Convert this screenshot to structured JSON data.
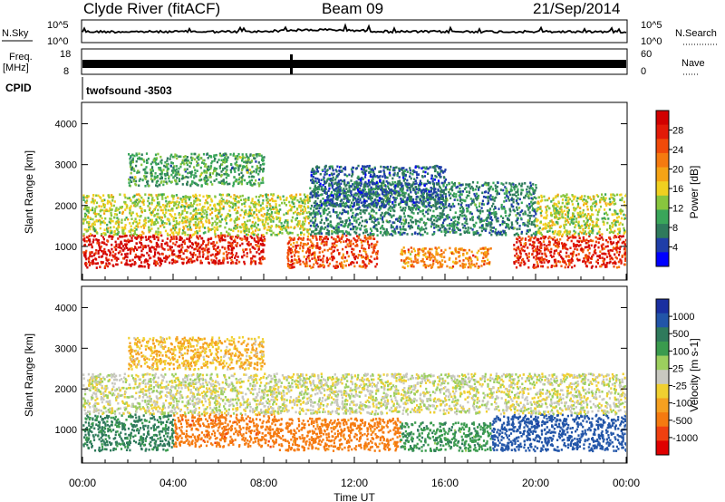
{
  "header": {
    "station": "Clyde River (fitACF)",
    "beam": "Beam 09",
    "date": "21/Sep/2014"
  },
  "strips": {
    "nsky_label": "N.Sky",
    "nsearch_label": "N.Search",
    "noise_ticks": [
      "10^5",
      "10^0"
    ],
    "freq_label": "Freq.",
    "freq_unit": "[MHz]",
    "freq_ticks": [
      "18",
      "8"
    ],
    "nave_label": "Nave",
    "nave_ticks": [
      "60",
      "0"
    ],
    "cpid_label": "CPID",
    "cpid_value": "twofsound -3503"
  },
  "colors": {
    "power": [
      "#0000ff",
      "#1f3ea8",
      "#2f7a5c",
      "#3aa65a",
      "#88c63e",
      "#f0d020",
      "#f5a315",
      "#f57a0f",
      "#f04a0a",
      "#e21a08",
      "#d10000"
    ],
    "velocity": [
      "#1a2fa0",
      "#2255a8",
      "#2f7a5c",
      "#3a9b4e",
      "#9ccf5e",
      "#c8c8c0",
      "#f0d030",
      "#f5a020",
      "#f57a10",
      "#f04010",
      "#e00000"
    ]
  },
  "chart_data": [
    {
      "type": "heatmap",
      "title": "Power",
      "xlabel": "",
      "ylabel": "Slant Range [km]",
      "x_range": [
        "00:00",
        "24:00"
      ],
      "ylim": [
        200,
        4500
      ],
      "y_ticks": [
        1000,
        2000,
        3000,
        4000
      ],
      "colorbar": {
        "label": "Power [dB]",
        "ticks": [
          "4",
          "8",
          "12",
          "16",
          "20",
          "24",
          "28"
        ]
      },
      "echo_regions": [
        {
          "t_start_h": 0.0,
          "t_end_h": 3.5,
          "range_km": [
            500,
            1300
          ],
          "power_db": 29
        },
        {
          "t_start_h": 3.5,
          "t_end_h": 8.0,
          "range_km": [
            600,
            1300
          ],
          "power_db": 27
        },
        {
          "t_start_h": 9.0,
          "t_end_h": 13.0,
          "range_km": [
            500,
            1300
          ],
          "power_db": 24
        },
        {
          "t_start_h": 14.0,
          "t_end_h": 18.0,
          "range_km": [
            500,
            1000
          ],
          "power_db": 20
        },
        {
          "t_start_h": 19.0,
          "t_end_h": 24.0,
          "range_km": [
            500,
            1300
          ],
          "power_db": 26
        },
        {
          "t_start_h": 0.0,
          "t_end_h": 10.0,
          "range_km": [
            1300,
            2300
          ],
          "power_db": 14
        },
        {
          "t_start_h": 10.0,
          "t_end_h": 20.0,
          "range_km": [
            1300,
            2600
          ],
          "power_db": 8
        },
        {
          "t_start_h": 20.0,
          "t_end_h": 24.0,
          "range_km": [
            1300,
            2300
          ],
          "power_db": 14
        },
        {
          "t_start_h": 2.0,
          "t_end_h": 8.0,
          "range_km": [
            2500,
            3300
          ],
          "power_db": 10
        },
        {
          "t_start_h": 10.0,
          "t_end_h": 16.0,
          "range_km": [
            2000,
            3000
          ],
          "power_db": 6
        }
      ]
    },
    {
      "type": "heatmap",
      "title": "Velocity",
      "xlabel": "Time UT",
      "ylabel": "Slant Range [km]",
      "x_range": [
        "00:00",
        "24:00"
      ],
      "x_ticks": [
        "00:00",
        "04:00",
        "08:00",
        "12:00",
        "16:00",
        "20:00",
        "00:00"
      ],
      "ylim": [
        200,
        4500
      ],
      "y_ticks": [
        1000,
        2000,
        3000,
        4000
      ],
      "colorbar": {
        "label": "Velocity [m s-1]",
        "ticks": [
          "1000",
          "500",
          "100",
          "25",
          "-25",
          "-100",
          "-500",
          "-1000"
        ]
      },
      "echo_regions": [
        {
          "t_start_h": 0.0,
          "t_end_h": 4.0,
          "range_km": [
            500,
            1400
          ],
          "velocity_ms": 200
        },
        {
          "t_start_h": 4.0,
          "t_end_h": 8.5,
          "range_km": [
            600,
            1400
          ],
          "velocity_ms": -300
        },
        {
          "t_start_h": 8.5,
          "t_end_h": 14.0,
          "range_km": [
            500,
            1300
          ],
          "velocity_ms": -250
        },
        {
          "t_start_h": 14.0,
          "t_end_h": 18.0,
          "range_km": [
            500,
            1200
          ],
          "velocity_ms": 150
        },
        {
          "t_start_h": 18.0,
          "t_end_h": 24.0,
          "range_km": [
            500,
            1400
          ],
          "velocity_ms": 600
        },
        {
          "t_start_h": 0.0,
          "t_end_h": 24.0,
          "range_km": [
            1400,
            2400
          ],
          "velocity_ms": 0
        },
        {
          "t_start_h": 2.0,
          "t_end_h": 8.0,
          "range_km": [
            2500,
            3300
          ],
          "velocity_ms": -80
        }
      ]
    }
  ]
}
